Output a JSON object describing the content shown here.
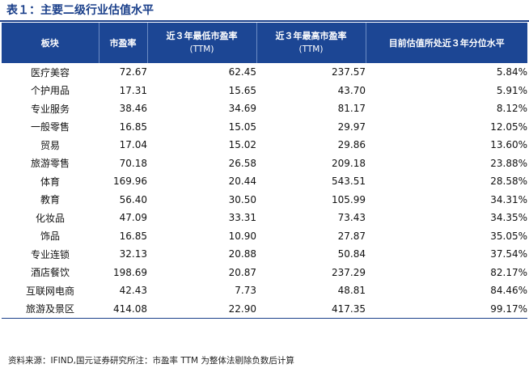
{
  "title": "表１：主要二级行业估值水平",
  "headers": {
    "sector": "板块",
    "pe": "市盈率",
    "min_l1": "近３年最低市盈率",
    "min_l2": "(TTM)",
    "max_l1": "近３年最高市盈率",
    "max_l2": "(TTM)",
    "pct": "目前估值所处近３年分位水平"
  },
  "rows": [
    {
      "name": "医疗美容",
      "pe": "72.67",
      "min": "62.45",
      "max": "237.57",
      "pct": "5.84%"
    },
    {
      "name": "个护用品",
      "pe": "17.31",
      "min": "15.65",
      "max": "43.70",
      "pct": "5.91%"
    },
    {
      "name": "专业服务",
      "pe": "38.46",
      "min": "34.69",
      "max": "81.17",
      "pct": "8.12%"
    },
    {
      "name": "一般零售",
      "pe": "16.85",
      "min": "15.05",
      "max": "29.97",
      "pct": "12.05%"
    },
    {
      "name": "贸易",
      "pe": "17.04",
      "min": "15.02",
      "max": "29.86",
      "pct": "13.60%"
    },
    {
      "name": "旅游零售",
      "pe": "70.18",
      "min": "26.58",
      "max": "209.18",
      "pct": "23.88%"
    },
    {
      "name": "体育",
      "pe": "169.96",
      "min": "20.44",
      "max": "543.51",
      "pct": "28.58%"
    },
    {
      "name": "教育",
      "pe": "56.40",
      "min": "30.50",
      "max": "105.99",
      "pct": "34.31%"
    },
    {
      "name": "化妆品",
      "pe": "47.09",
      "min": "33.31",
      "max": "73.43",
      "pct": "34.35%"
    },
    {
      "name": "饰品",
      "pe": "16.85",
      "min": "10.90",
      "max": "27.87",
      "pct": "35.05%"
    },
    {
      "name": "专业连锁",
      "pe": "32.13",
      "min": "20.88",
      "max": "50.84",
      "pct": "37.54%"
    },
    {
      "name": "酒店餐饮",
      "pe": "198.69",
      "min": "20.87",
      "max": "237.29",
      "pct": "82.17%"
    },
    {
      "name": "互联网电商",
      "pe": "42.43",
      "min": "7.73",
      "max": "48.81",
      "pct": "84.46%"
    },
    {
      "name": "旅游及景区",
      "pe": "414.08",
      "min": "22.90",
      "max": "417.35",
      "pct": "99.17%"
    }
  ],
  "source": "资料来源：IFIND,国元证券研究所注：市盈率 TTM 为整体法剔除负数后计算",
  "colors": {
    "header_bg": "#1c4694",
    "title": "#1a3f8a"
  }
}
